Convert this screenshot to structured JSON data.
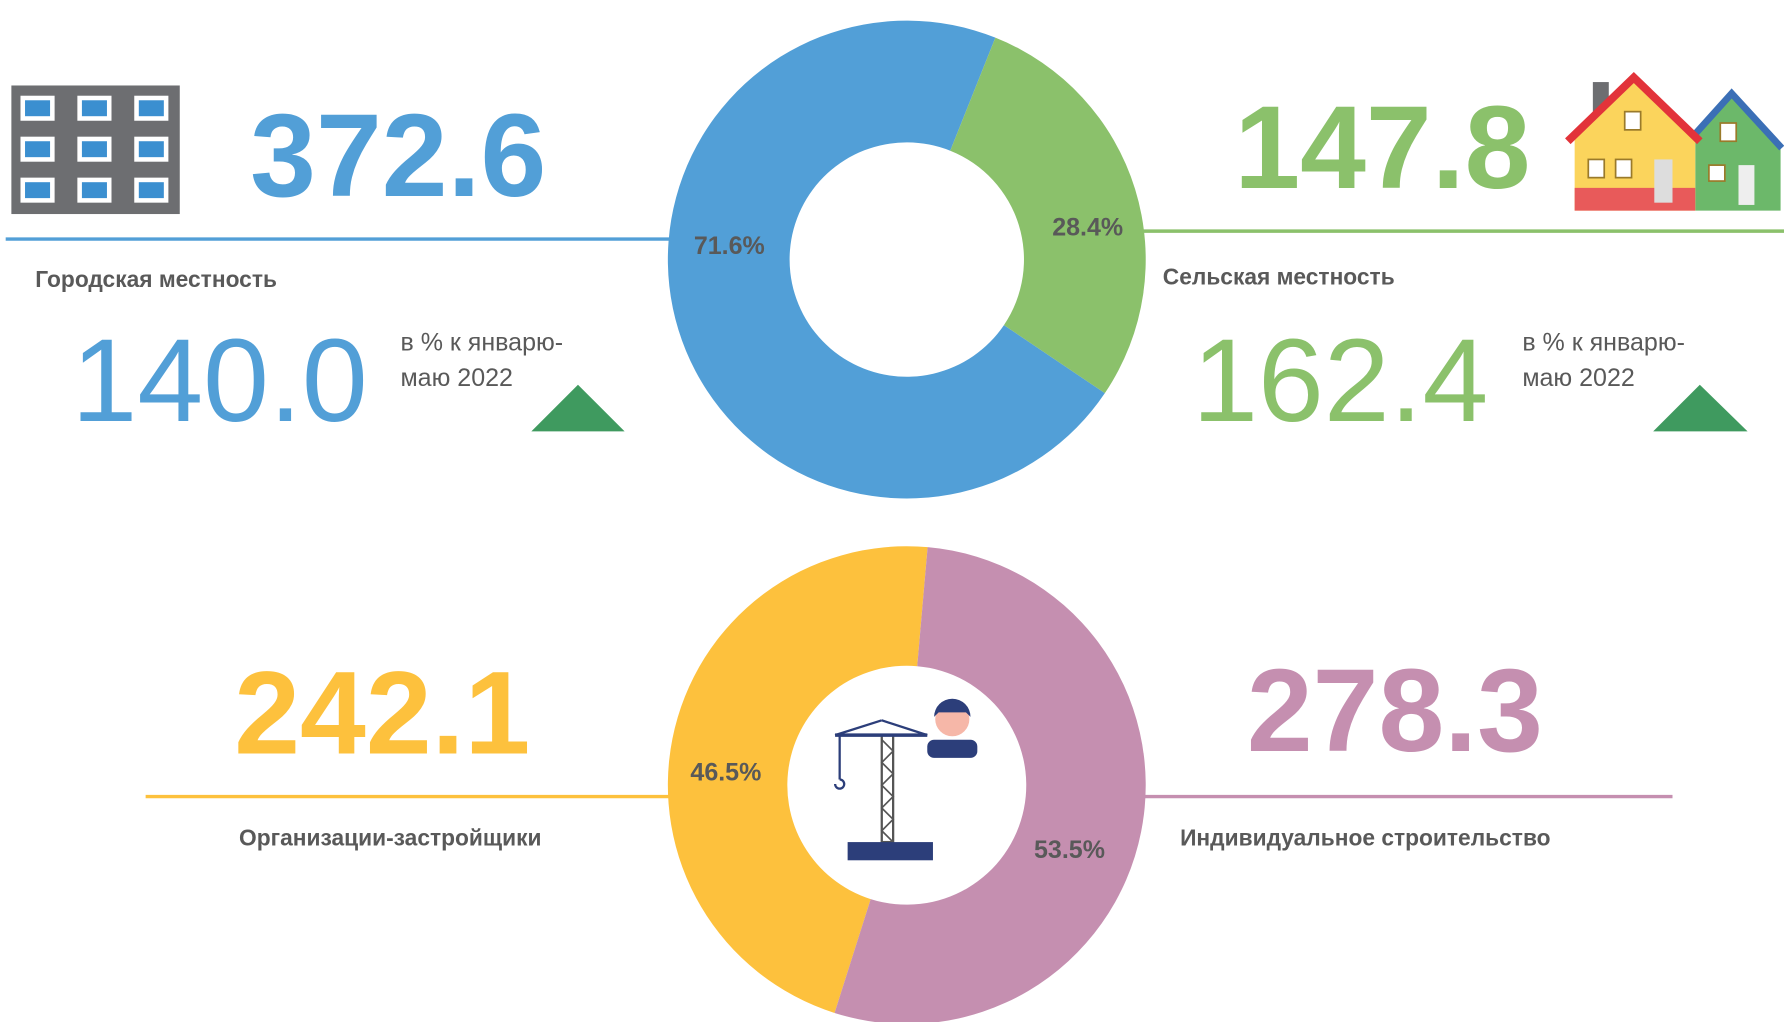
{
  "chart_data": [
    {
      "type": "pie",
      "categories": [
        "Городская местность",
        "Сельская местность"
      ],
      "values": [
        71.6,
        28.4
      ],
      "value_labels": [
        "71.6%",
        "28.4%"
      ],
      "colors": [
        "#529fd7",
        "#8bc16b"
      ],
      "figures": [
        "372.6",
        "147.8"
      ],
      "index_figures": [
        "140.0",
        "162.4"
      ],
      "note_lines": [
        "в % к январю-",
        "маю 2022"
      ]
    },
    {
      "type": "pie",
      "categories": [
        "Организации-застройщики",
        "Индивидуальное строительство"
      ],
      "values": [
        46.5,
        53.5
      ],
      "value_labels": [
        "46.5%",
        "53.5%"
      ],
      "colors": [
        "#fdc13d",
        "#c58fb0"
      ],
      "figures": [
        "242.1",
        "278.3"
      ]
    }
  ]
}
